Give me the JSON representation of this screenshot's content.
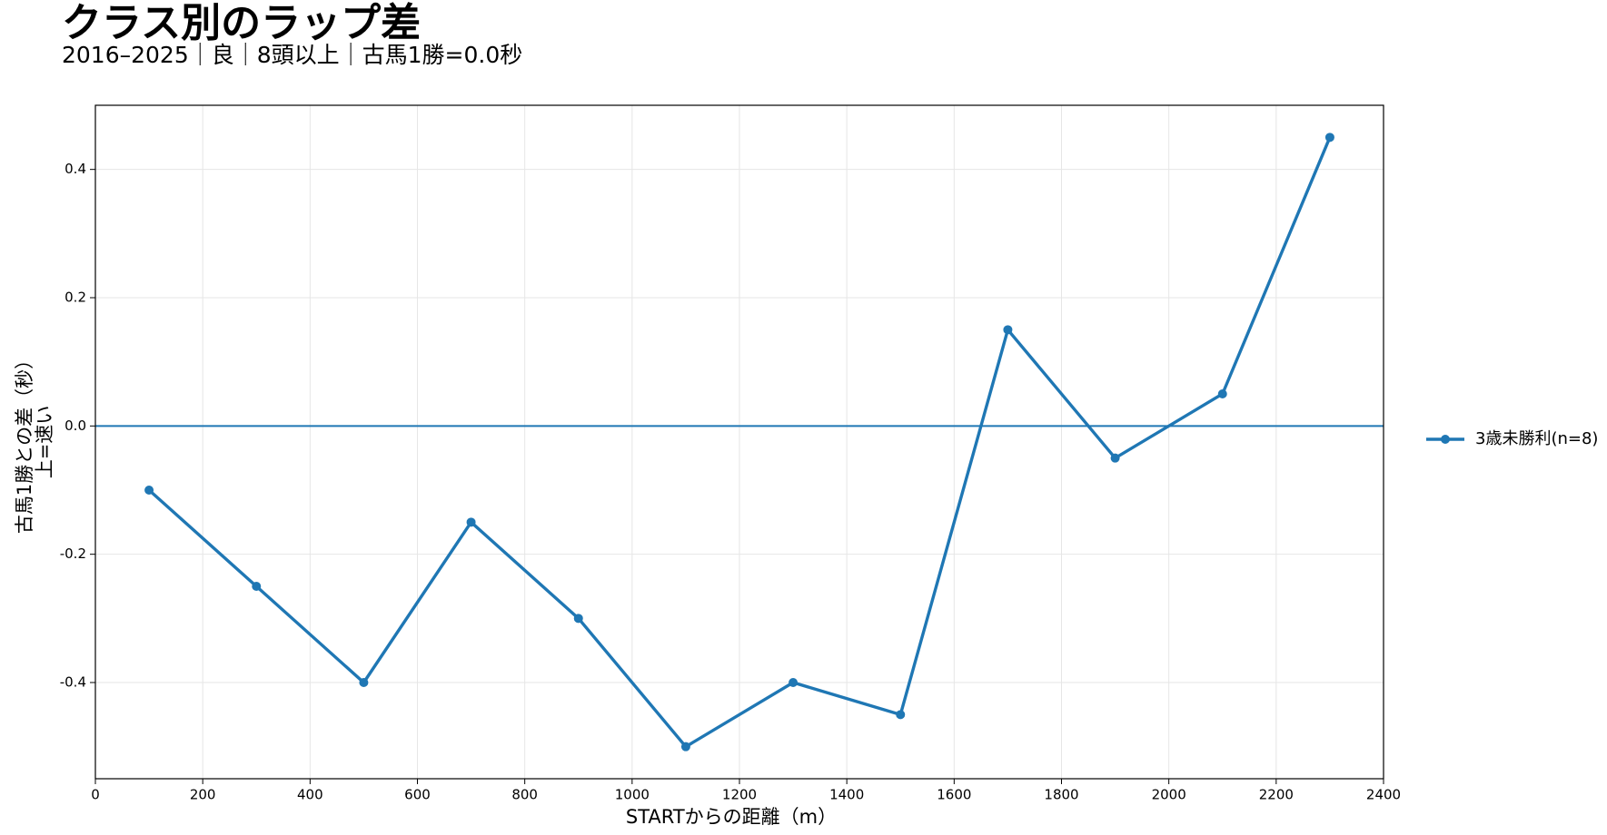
{
  "chart_data": {
    "type": "line",
    "title": "クラス別のラップ差",
    "subtitle": "2016–2025｜良｜8頭以上｜古馬1勝=0.0秒",
    "xlabel": "STARTからの距離（m）",
    "ylabel": [
      "古馬1勝との差（秒）",
      "上=速い"
    ],
    "x": [
      100,
      300,
      500,
      700,
      900,
      1100,
      1300,
      1500,
      1700,
      1900,
      2100,
      2300
    ],
    "series": [
      {
        "name": "3歳未勝利(n=8)",
        "color": "#1f77b4",
        "values": [
          -0.1,
          -0.25,
          -0.4,
          -0.15,
          -0.3,
          -0.5,
          -0.4,
          -0.45,
          0.15,
          -0.05,
          0.05,
          0.45
        ]
      }
    ],
    "hline": 0,
    "xlim": [
      0,
      2400
    ],
    "xticks": [
      0,
      200,
      400,
      600,
      800,
      1000,
      1200,
      1400,
      1600,
      1800,
      2000,
      2200,
      2400
    ],
    "ylim": [
      -0.55,
      0.5
    ],
    "yticks": [
      -0.4,
      -0.2,
      {
        "value": 0,
        "label": "0.0"
      },
      0.2,
      0.4
    ],
    "grid": true,
    "legend": "right"
  }
}
